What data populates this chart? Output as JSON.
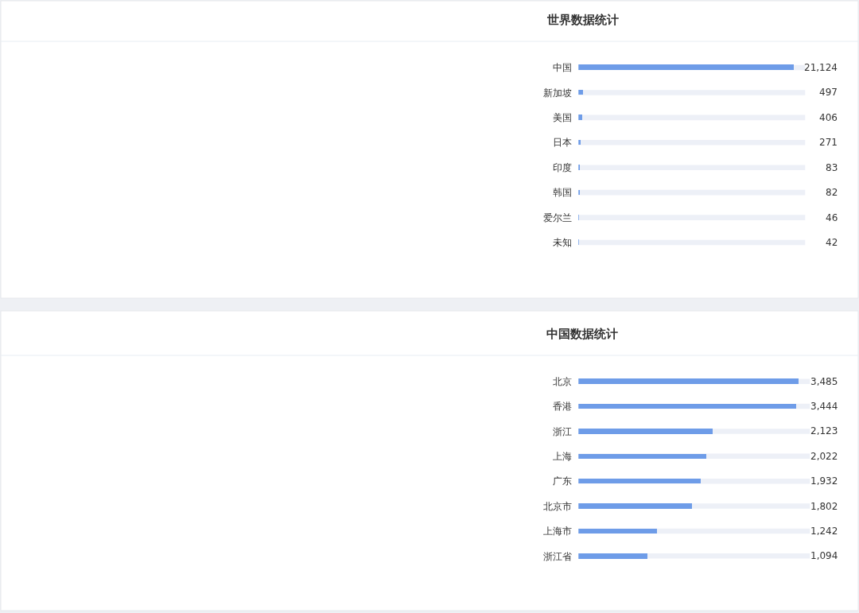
{
  "chart_data": [
    {
      "type": "bar",
      "orientation": "horizontal",
      "title": "世界数据统计",
      "categories": [
        "中国",
        "新加坡",
        "美国",
        "日本",
        "印度",
        "韩国",
        "爱尔兰",
        "未知"
      ],
      "values": [
        21124,
        497,
        406,
        271,
        83,
        82,
        46,
        42
      ],
      "value_labels": [
        "21,124",
        "497",
        "406",
        "271",
        "83",
        "82",
        "46",
        "42"
      ],
      "color": "#6e9ce8",
      "xlim": [
        0,
        22200
      ],
      "tick_labels": "y"
    },
    {
      "type": "bar",
      "orientation": "horizontal",
      "title": "中国数据统计",
      "categories": [
        "北京",
        "香港",
        "浙江",
        "上海",
        "广东",
        "北京市",
        "上海市",
        "浙江省"
      ],
      "values": [
        3485,
        3444,
        2123,
        2022,
        1932,
        1802,
        1242,
        1094
      ],
      "value_labels": [
        "3,485",
        "3,444",
        "2,123",
        "2,022",
        "1,932",
        "1,802",
        "1,242",
        "1,094"
      ],
      "color": "#6e9ce8",
      "xlim": [
        0,
        3660
      ],
      "tick_labels": "y"
    }
  ]
}
